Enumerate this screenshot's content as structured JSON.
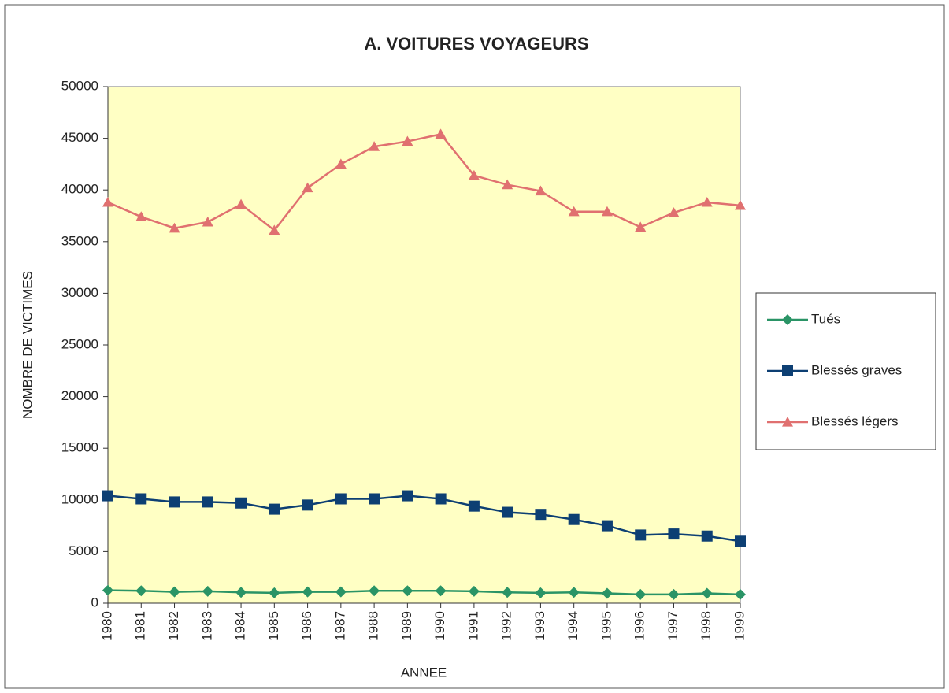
{
  "chart_data": {
    "type": "line",
    "title": "A. VOITURES VOYAGEURS",
    "xlabel": "ANNEE",
    "ylabel": "NOMBRE DE VICTIMES",
    "categories": [
      "1980",
      "1981",
      "1982",
      "1983",
      "1984",
      "1985",
      "1986",
      "1987",
      "1988",
      "1989",
      "1990",
      "1991",
      "1992",
      "1993",
      "1994",
      "1995",
      "1996",
      "1997",
      "1998",
      "1999"
    ],
    "series": [
      {
        "name": "Tués",
        "color": "#2a9466",
        "marker": "diamond",
        "values": [
          1250,
          1200,
          1100,
          1150,
          1050,
          1000,
          1100,
          1100,
          1200,
          1200,
          1200,
          1150,
          1050,
          1000,
          1050,
          950,
          850,
          850,
          950,
          850
        ]
      },
      {
        "name": "Blessés graves",
        "color": "#0d3f73",
        "marker": "square",
        "values": [
          10400,
          10100,
          9800,
          9800,
          9700,
          9100,
          9500,
          10100,
          10100,
          10400,
          10100,
          9400,
          8800,
          8600,
          8100,
          7500,
          6600,
          6700,
          6500,
          6000
        ]
      },
      {
        "name": "Blessés légers",
        "color": "#e07070",
        "marker": "triangle",
        "values": [
          38800,
          37400,
          36300,
          36900,
          38600,
          36100,
          40200,
          42500,
          44200,
          44700,
          45400,
          41400,
          40500,
          39900,
          37900,
          37900,
          36400,
          37800,
          38800,
          38500
        ]
      }
    ],
    "ylim": [
      0,
      50000
    ],
    "yticks": [
      0,
      5000,
      10000,
      15000,
      20000,
      25000,
      30000,
      35000,
      40000,
      45000,
      50000
    ],
    "legend": "right",
    "plot_background": "#ffffc4"
  }
}
